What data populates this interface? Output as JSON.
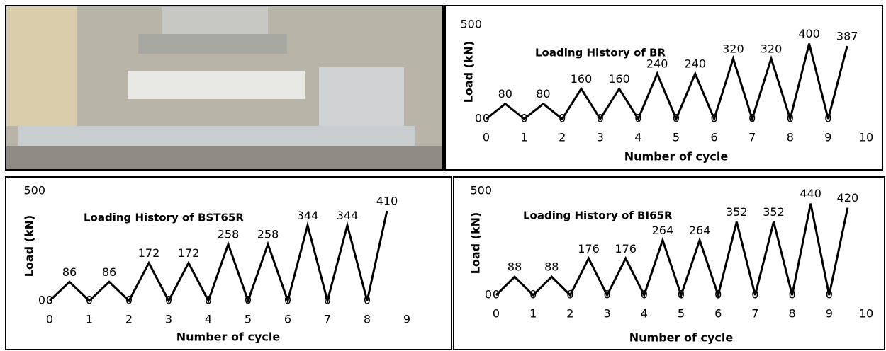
{
  "chart_data": [
    {
      "type": "line",
      "title": "Loading History  of BR",
      "xlabel": "Number of cycle",
      "ylabel": "Load (kN)",
      "x": [
        0,
        0.5,
        1,
        1.5,
        2,
        2.5,
        3,
        3.5,
        4,
        4.5,
        5,
        5.5,
        6,
        6.5,
        7,
        7.5,
        8,
        8.5,
        9,
        9.5
      ],
      "values": [
        0,
        80,
        0,
        80,
        0,
        160,
        0,
        160,
        0,
        240,
        0,
        240,
        0,
        320,
        0,
        320,
        0,
        400,
        0,
        387
      ],
      "color": "#000000",
      "xlim": [
        0,
        10
      ],
      "xticks": [
        0,
        1,
        2,
        3,
        4,
        5,
        6,
        7,
        8,
        9,
        10
      ],
      "ylim": [
        0,
        500
      ],
      "yticks": [
        0,
        500
      ]
    },
    {
      "type": "line",
      "title": "Loading History  of BST65R",
      "xlabel": "Number of cycle",
      "ylabel": "Load (kN)",
      "x": [
        0,
        0.5,
        1,
        1.5,
        2,
        2.5,
        3,
        3.5,
        4,
        4.5,
        5,
        5.5,
        6,
        6.5,
        7,
        7.5,
        8,
        8.5
      ],
      "values": [
        0,
        86,
        0,
        86,
        0,
        172,
        0,
        172,
        0,
        258,
        0,
        258,
        0,
        344,
        0,
        344,
        0,
        410
      ],
      "color": "#000000",
      "xlim": [
        0,
        9
      ],
      "xticks": [
        0,
        1,
        2,
        3,
        4,
        5,
        6,
        7,
        8,
        9
      ],
      "ylim": [
        0,
        500
      ],
      "yticks": [
        0,
        500
      ]
    },
    {
      "type": "line",
      "title": "Loading History  of BI65R",
      "xlabel": "Number of cycle",
      "ylabel": "Load (kN)",
      "x": [
        0,
        0.5,
        1,
        1.5,
        2,
        2.5,
        3,
        3.5,
        4,
        4.5,
        5,
        5.5,
        6,
        6.5,
        7,
        7.5,
        8,
        8.5,
        9,
        9.5
      ],
      "values": [
        0,
        88,
        0,
        88,
        0,
        176,
        0,
        176,
        0,
        264,
        0,
        264,
        0,
        352,
        0,
        352,
        0,
        440,
        0,
        420
      ],
      "color": "#000000",
      "xlim": [
        0,
        10
      ],
      "xticks": [
        0,
        1,
        2,
        3,
        4,
        5,
        6,
        7,
        8,
        9,
        10
      ],
      "ylim": [
        0,
        500
      ],
      "yticks": [
        0,
        500
      ]
    }
  ]
}
